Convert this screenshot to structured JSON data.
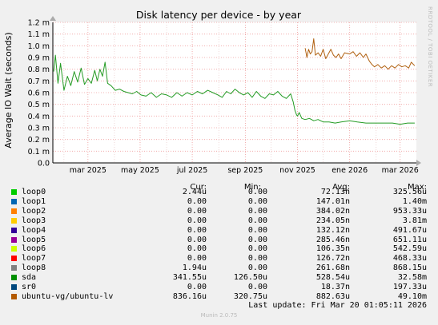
{
  "chart_data": {
    "type": "line",
    "title": "Disk latency per device - by year",
    "ylabel": "Average IO Wait (seconds)",
    "ylim": [
      0,
      0.0012
    ],
    "yticks": [
      {
        "v": 0,
        "label": "0.0"
      },
      {
        "v": 0.0001,
        "label": "0.1 m"
      },
      {
        "v": 0.0002,
        "label": "0.2 m"
      },
      {
        "v": 0.0003,
        "label": "0.3 m"
      },
      {
        "v": 0.0004,
        "label": "0.4 m"
      },
      {
        "v": 0.0005,
        "label": "0.5 m"
      },
      {
        "v": 0.0006,
        "label": "0.6 m"
      },
      {
        "v": 0.0007,
        "label": "0.7 m"
      },
      {
        "v": 0.0008,
        "label": "0.8 m"
      },
      {
        "v": 0.0009,
        "label": "0.9 m"
      },
      {
        "v": 0.001,
        "label": "1.0 m"
      },
      {
        "v": 0.0011,
        "label": "1.1 m"
      },
      {
        "v": 0.0012,
        "label": "1.2 m"
      }
    ],
    "xlim": [
      "2025-01-19",
      "2026-03-20"
    ],
    "xticks": [
      {
        "date": "2025-03-01",
        "label": "mar 2025"
      },
      {
        "date": "2025-05-01",
        "label": "may 2025"
      },
      {
        "date": "2025-07-01",
        "label": "jul 2025"
      },
      {
        "date": "2025-09-01",
        "label": "sep 2025"
      },
      {
        "date": "2025-11-01",
        "label": "nov 2025"
      },
      {
        "date": "2026-01-01",
        "label": "ene 2026"
      },
      {
        "date": "2026-03-01",
        "label": "mar 2026"
      }
    ],
    "grid": true,
    "series": [
      {
        "name": "sda",
        "color": "#00CC00",
        "drawColor": "#249b24",
        "points": [
          [
            "2025-01-20",
            0.00078
          ],
          [
            "2025-01-22",
            0.00092
          ],
          [
            "2025-01-25",
            0.00068
          ],
          [
            "2025-01-28",
            0.00085
          ],
          [
            "2025-02-01",
            0.00062
          ],
          [
            "2025-02-05",
            0.00074
          ],
          [
            "2025-02-09",
            0.00066
          ],
          [
            "2025-02-13",
            0.00078
          ],
          [
            "2025-02-17",
            0.00069
          ],
          [
            "2025-02-21",
            0.00081
          ],
          [
            "2025-02-25",
            0.00067
          ],
          [
            "2025-03-01",
            0.00072
          ],
          [
            "2025-03-05",
            0.00068
          ],
          [
            "2025-03-09",
            0.00079
          ],
          [
            "2025-03-12",
            0.0007
          ],
          [
            "2025-03-15",
            0.0008
          ],
          [
            "2025-03-18",
            0.00074
          ],
          [
            "2025-03-21",
            0.00086
          ],
          [
            "2025-03-24",
            0.00068
          ],
          [
            "2025-03-28",
            0.00066
          ],
          [
            "2025-04-02",
            0.00062
          ],
          [
            "2025-04-07",
            0.00063
          ],
          [
            "2025-04-12",
            0.00061
          ],
          [
            "2025-04-17",
            0.0006
          ],
          [
            "2025-04-22",
            0.00059
          ],
          [
            "2025-04-27",
            0.00061
          ],
          [
            "2025-05-02",
            0.00058
          ],
          [
            "2025-05-08",
            0.00057
          ],
          [
            "2025-05-14",
            0.0006
          ],
          [
            "2025-05-20",
            0.00056
          ],
          [
            "2025-05-26",
            0.00059
          ],
          [
            "2025-06-01",
            0.00058
          ],
          [
            "2025-06-07",
            0.00056
          ],
          [
            "2025-06-13",
            0.0006
          ],
          [
            "2025-06-19",
            0.00057
          ],
          [
            "2025-06-25",
            0.0006
          ],
          [
            "2025-07-01",
            0.00058
          ],
          [
            "2025-07-07",
            0.00061
          ],
          [
            "2025-07-13",
            0.00059
          ],
          [
            "2025-07-19",
            0.00062
          ],
          [
            "2025-07-25",
            0.0006
          ],
          [
            "2025-07-31",
            0.00058
          ],
          [
            "2025-08-05",
            0.00056
          ],
          [
            "2025-08-10",
            0.00061
          ],
          [
            "2025-08-15",
            0.00059
          ],
          [
            "2025-08-20",
            0.00063
          ],
          [
            "2025-08-25",
            0.0006
          ],
          [
            "2025-08-30",
            0.00058
          ],
          [
            "2025-09-04",
            0.0006
          ],
          [
            "2025-09-09",
            0.00056
          ],
          [
            "2025-09-14",
            0.00061
          ],
          [
            "2025-09-19",
            0.00057
          ],
          [
            "2025-09-24",
            0.00055
          ],
          [
            "2025-09-29",
            0.00059
          ],
          [
            "2025-10-04",
            0.00058
          ],
          [
            "2025-10-09",
            0.00061
          ],
          [
            "2025-10-14",
            0.00057
          ],
          [
            "2025-10-19",
            0.00055
          ],
          [
            "2025-10-24",
            0.00059
          ],
          [
            "2025-10-27",
            0.00052
          ],
          [
            "2025-10-29",
            0.00045
          ],
          [
            "2025-10-31",
            0.00041
          ],
          [
            "2025-11-01",
            0.0004
          ],
          [
            "2025-11-03",
            0.00043
          ],
          [
            "2025-11-06",
            0.00038
          ],
          [
            "2025-11-10",
            0.00037
          ],
          [
            "2025-11-15",
            0.00038
          ],
          [
            "2025-11-20",
            0.00036
          ],
          [
            "2025-11-25",
            0.00037
          ],
          [
            "2025-12-01",
            0.00035
          ],
          [
            "2025-12-08",
            0.00035
          ],
          [
            "2025-12-15",
            0.00034
          ],
          [
            "2025-12-22",
            0.00035
          ],
          [
            "2026-01-01",
            0.00036
          ],
          [
            "2026-01-10",
            0.00035
          ],
          [
            "2026-01-20",
            0.00034
          ],
          [
            "2026-02-01",
            0.00034
          ],
          [
            "2026-02-10",
            0.00034
          ],
          [
            "2026-02-20",
            0.00034
          ],
          [
            "2026-03-01",
            0.00033
          ],
          [
            "2026-03-10",
            0.00034
          ],
          [
            "2026-03-18",
            0.00034
          ]
        ]
      },
      {
        "name": "ubuntu-vg/ubuntu-lv",
        "color": "#CC6600",
        "drawColor": "#b06010",
        "points": [
          [
            "2025-11-10",
            0.00098
          ],
          [
            "2025-11-12",
            0.0009
          ],
          [
            "2025-11-14",
            0.00097
          ],
          [
            "2025-11-16",
            0.00093
          ],
          [
            "2025-11-18",
            0.00095
          ],
          [
            "2025-11-20",
            0.00106
          ],
          [
            "2025-11-22",
            0.00092
          ],
          [
            "2025-11-25",
            0.00094
          ],
          [
            "2025-11-28",
            0.00091
          ],
          [
            "2025-12-01",
            0.00097
          ],
          [
            "2025-12-04",
            0.00089
          ],
          [
            "2025-12-07",
            0.00093
          ],
          [
            "2025-12-10",
            0.00097
          ],
          [
            "2025-12-13",
            0.00092
          ],
          [
            "2025-12-16",
            0.0009
          ],
          [
            "2025-12-19",
            0.00093
          ],
          [
            "2025-12-22",
            0.00089
          ],
          [
            "2025-12-26",
            0.00094
          ],
          [
            "2026-01-01",
            0.00093
          ],
          [
            "2026-01-05",
            0.00095
          ],
          [
            "2026-01-09",
            0.00091
          ],
          [
            "2026-01-13",
            0.00094
          ],
          [
            "2026-01-17",
            0.0009
          ],
          [
            "2026-01-20",
            0.00093
          ],
          [
            "2026-01-24",
            0.00087
          ],
          [
            "2026-01-27",
            0.00084
          ],
          [
            "2026-01-30",
            0.00082
          ],
          [
            "2026-02-03",
            0.00084
          ],
          [
            "2026-02-07",
            0.00081
          ],
          [
            "2026-02-11",
            0.00083
          ],
          [
            "2026-02-15",
            0.0008
          ],
          [
            "2026-02-19",
            0.00083
          ],
          [
            "2026-02-23",
            0.00081
          ],
          [
            "2026-02-27",
            0.00084
          ],
          [
            "2026-03-03",
            0.00082
          ],
          [
            "2026-03-07",
            0.00083
          ],
          [
            "2026-03-11",
            0.00081
          ],
          [
            "2026-03-14",
            0.00086
          ],
          [
            "2026-03-18",
            0.00083
          ]
        ]
      }
    ]
  },
  "legend": {
    "headers": {
      "cur": "Cur:",
      "min": "Min:",
      "avg": "Avg:",
      "max": "Max:"
    },
    "rows": [
      {
        "name": "loop0",
        "color": "#00CC00",
        "cur": "2.44u",
        "min": "0.00",
        "avg": "72.13n",
        "max": "325.56u"
      },
      {
        "name": "loop1",
        "color": "#0066B3",
        "cur": "0.00",
        "min": "0.00",
        "avg": "147.01n",
        "max": "1.40m"
      },
      {
        "name": "loop2",
        "color": "#FF8000",
        "cur": "0.00",
        "min": "0.00",
        "avg": "384.02n",
        "max": "953.33u"
      },
      {
        "name": "loop3",
        "color": "#FFCC00",
        "cur": "0.00",
        "min": "0.00",
        "avg": "234.05n",
        "max": "3.81m"
      },
      {
        "name": "loop4",
        "color": "#330099",
        "cur": "0.00",
        "min": "0.00",
        "avg": "132.12n",
        "max": "491.67u"
      },
      {
        "name": "loop5",
        "color": "#990099",
        "cur": "0.00",
        "min": "0.00",
        "avg": "285.46n",
        "max": "651.11u"
      },
      {
        "name": "loop6",
        "color": "#CCFF00",
        "cur": "0.00",
        "min": "0.00",
        "avg": "106.35n",
        "max": "542.59u"
      },
      {
        "name": "loop7",
        "color": "#FF0000",
        "cur": "0.00",
        "min": "0.00",
        "avg": "126.72n",
        "max": "468.33u"
      },
      {
        "name": "loop8",
        "color": "#808080",
        "cur": "1.94u",
        "min": "0.00",
        "avg": "261.68n",
        "max": "868.15u"
      },
      {
        "name": "sda",
        "color": "#008F00",
        "cur": "341.55u",
        "min": "126.50u",
        "avg": "528.54u",
        "max": "32.58m"
      },
      {
        "name": "sr0",
        "color": "#00487D",
        "cur": "0.00",
        "min": "0.00",
        "avg": "18.37n",
        "max": "197.33u"
      },
      {
        "name": "ubuntu-vg/ubuntu-lv",
        "color": "#B35A00",
        "cur": "836.16u",
        "min": "320.75u",
        "avg": "882.63u",
        "max": "49.10m"
      }
    ]
  },
  "last_update": "Last update: Fri Mar 20 01:05:11 2026",
  "footer": "Munin 2.0.75",
  "side_title": "RRDTOOL / TOBI OETIKER"
}
